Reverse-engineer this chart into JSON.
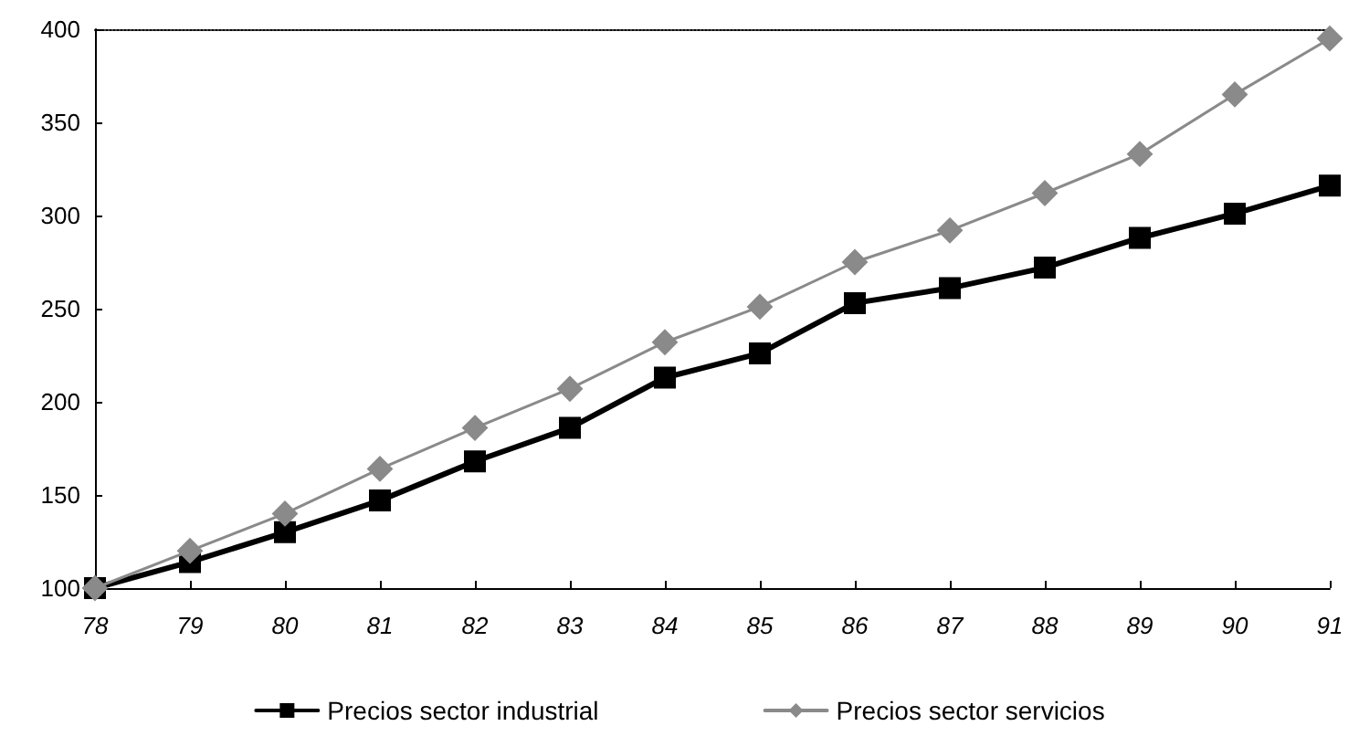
{
  "chart_data": {
    "type": "line",
    "categories": [
      "78",
      "79",
      "80",
      "81",
      "82",
      "83",
      "84",
      "85",
      "86",
      "87",
      "88",
      "89",
      "90",
      "91"
    ],
    "series": [
      {
        "name": "Precios sector industrial",
        "color": "#000000",
        "marker": "square",
        "values": [
          100,
          114,
          130,
          147,
          168,
          186,
          213,
          226,
          253,
          261,
          272,
          288,
          301,
          316
        ]
      },
      {
        "name": "Precios sector servicios",
        "color": "#8a8a8a",
        "marker": "diamond",
        "values": [
          100,
          120,
          140,
          164,
          186,
          207,
          232,
          251,
          275,
          292,
          312,
          333,
          365,
          395
        ]
      }
    ],
    "ylim": [
      100,
      400
    ],
    "yticks": [
      100,
      150,
      200,
      250,
      300,
      350,
      400
    ],
    "grid": false,
    "legend": "bottom"
  }
}
